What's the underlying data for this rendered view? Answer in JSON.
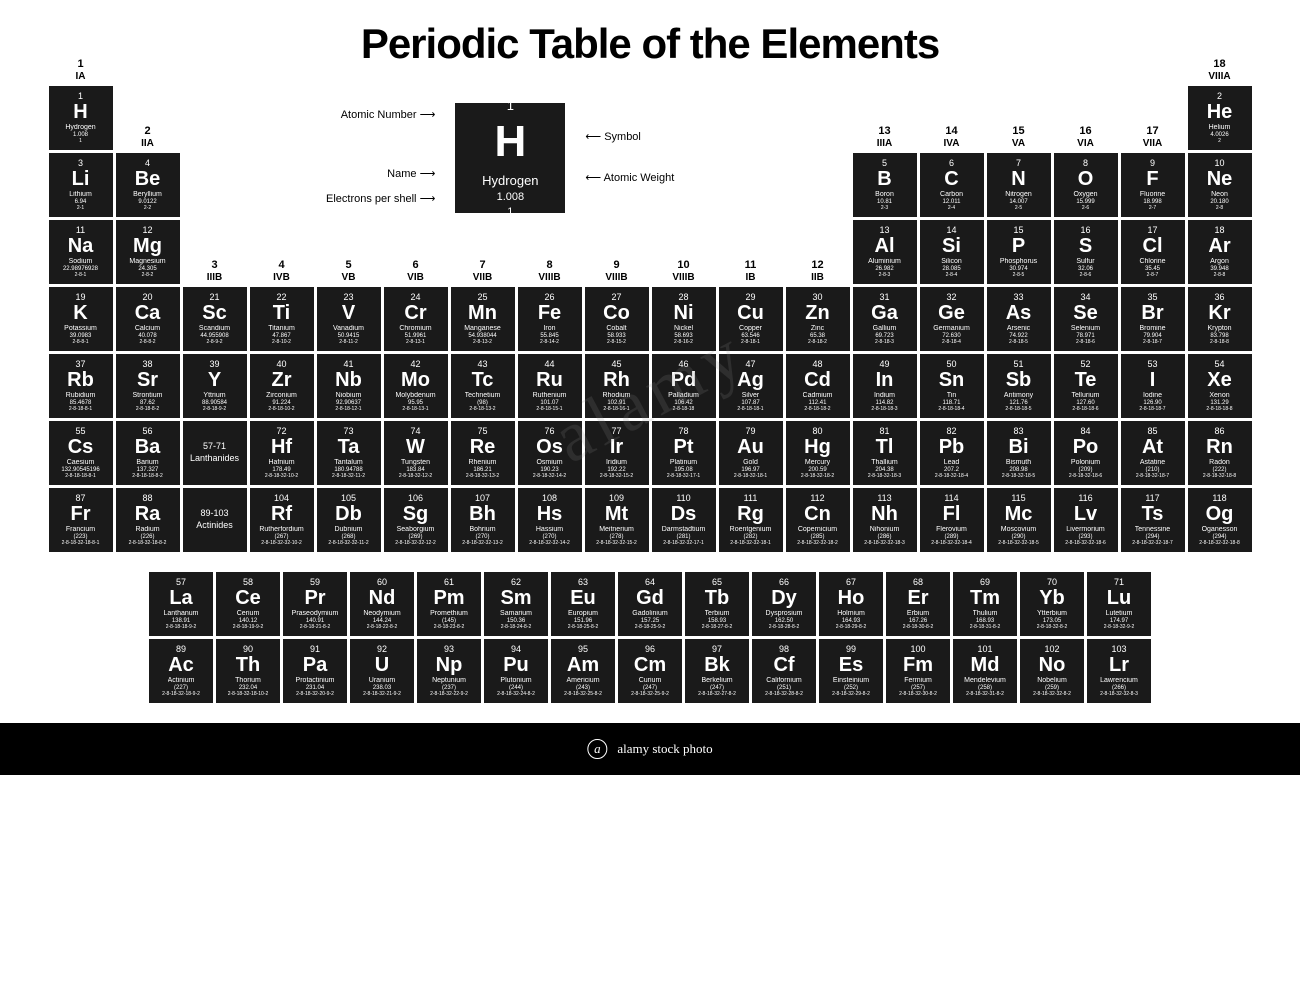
{
  "title": "Periodic Table of the Elements",
  "watermark_main": "alamy",
  "watermark_sub": "alamy stock photo",
  "image_id": "www.alamy.com - RD10B9",
  "colors": {
    "cell_bg": "#1a1a1a",
    "cell_fg": "#ffffff",
    "page_bg": "#ffffff",
    "bottom_bar": "#000000"
  },
  "legend": {
    "atomic_number": "Atomic Number",
    "symbol": "Symbol",
    "name": "Name",
    "atomic_weight": "Atomic Weight",
    "electrons": "Electrons per shell",
    "sample": {
      "z": "1",
      "sym": "H",
      "nm": "Hydrogen",
      "wt": "1.008",
      "sh": "1"
    }
  },
  "groups": [
    {
      "n": "1",
      "o": "IA",
      "c": 1,
      "r": 1
    },
    {
      "n": "2",
      "o": "IIA",
      "c": 2,
      "r": 2
    },
    {
      "n": "3",
      "o": "IIIB",
      "c": 3,
      "r": 4
    },
    {
      "n": "4",
      "o": "IVB",
      "c": 4,
      "r": 4
    },
    {
      "n": "5",
      "o": "VB",
      "c": 5,
      "r": 4
    },
    {
      "n": "6",
      "o": "VIB",
      "c": 6,
      "r": 4
    },
    {
      "n": "7",
      "o": "VIIB",
      "c": 7,
      "r": 4
    },
    {
      "n": "8",
      "o": "VIIIB",
      "c": 8,
      "r": 4
    },
    {
      "n": "9",
      "o": "VIIIB",
      "c": 9,
      "r": 4
    },
    {
      "n": "10",
      "o": "VIIIB",
      "c": 10,
      "r": 4
    },
    {
      "n": "11",
      "o": "IB",
      "c": 11,
      "r": 4
    },
    {
      "n": "12",
      "o": "IIB",
      "c": 12,
      "r": 4
    },
    {
      "n": "13",
      "o": "IIIA",
      "c": 13,
      "r": 2
    },
    {
      "n": "14",
      "o": "IVA",
      "c": 14,
      "r": 2
    },
    {
      "n": "15",
      "o": "VA",
      "c": 15,
      "r": 2
    },
    {
      "n": "16",
      "o": "VIA",
      "c": 16,
      "r": 2
    },
    {
      "n": "17",
      "o": "VIIA",
      "c": 17,
      "r": 2
    },
    {
      "n": "18",
      "o": "VIIIA",
      "c": 18,
      "r": 1
    }
  ],
  "placeholders": [
    {
      "r": 6,
      "c": 3,
      "t1": "57-71",
      "t2": "Lanthanides"
    },
    {
      "r": 7,
      "c": 3,
      "t1": "89-103",
      "t2": "Actinides"
    }
  ],
  "elements": [
    {
      "z": 1,
      "sym": "H",
      "nm": "Hydrogen",
      "wt": "1.008",
      "sh": "1",
      "r": 1,
      "c": 1
    },
    {
      "z": 2,
      "sym": "He",
      "nm": "Helium",
      "wt": "4.0026",
      "sh": "2",
      "r": 1,
      "c": 18
    },
    {
      "z": 3,
      "sym": "Li",
      "nm": "Lithium",
      "wt": "6.94",
      "sh": "2-1",
      "r": 2,
      "c": 1
    },
    {
      "z": 4,
      "sym": "Be",
      "nm": "Beryllium",
      "wt": "9.0122",
      "sh": "2-2",
      "r": 2,
      "c": 2
    },
    {
      "z": 5,
      "sym": "B",
      "nm": "Boron",
      "wt": "10.81",
      "sh": "2-3",
      "r": 2,
      "c": 13
    },
    {
      "z": 6,
      "sym": "C",
      "nm": "Carbon",
      "wt": "12.011",
      "sh": "2-4",
      "r": 2,
      "c": 14
    },
    {
      "z": 7,
      "sym": "N",
      "nm": "Nitrogen",
      "wt": "14.007",
      "sh": "2-5",
      "r": 2,
      "c": 15
    },
    {
      "z": 8,
      "sym": "O",
      "nm": "Oxygen",
      "wt": "15.999",
      "sh": "2-6",
      "r": 2,
      "c": 16
    },
    {
      "z": 9,
      "sym": "F",
      "nm": "Fluorine",
      "wt": "18.998",
      "sh": "2-7",
      "r": 2,
      "c": 17
    },
    {
      "z": 10,
      "sym": "Ne",
      "nm": "Neon",
      "wt": "20.180",
      "sh": "2-8",
      "r": 2,
      "c": 18
    },
    {
      "z": 11,
      "sym": "Na",
      "nm": "Sodium",
      "wt": "22.98976928",
      "sh": "2-8-1",
      "r": 3,
      "c": 1
    },
    {
      "z": 12,
      "sym": "Mg",
      "nm": "Magnesium",
      "wt": "24.305",
      "sh": "2-8-2",
      "r": 3,
      "c": 2
    },
    {
      "z": 13,
      "sym": "Al",
      "nm": "Aluminium",
      "wt": "26.982",
      "sh": "2-8-3",
      "r": 3,
      "c": 13
    },
    {
      "z": 14,
      "sym": "Si",
      "nm": "Silicon",
      "wt": "28.085",
      "sh": "2-8-4",
      "r": 3,
      "c": 14
    },
    {
      "z": 15,
      "sym": "P",
      "nm": "Phosphorus",
      "wt": "30.974",
      "sh": "2-8-5",
      "r": 3,
      "c": 15
    },
    {
      "z": 16,
      "sym": "S",
      "nm": "Sulfur",
      "wt": "32.06",
      "sh": "2-8-6",
      "r": 3,
      "c": 16
    },
    {
      "z": 17,
      "sym": "Cl",
      "nm": "Chlorine",
      "wt": "35.45",
      "sh": "2-8-7",
      "r": 3,
      "c": 17
    },
    {
      "z": 18,
      "sym": "Ar",
      "nm": "Argon",
      "wt": "39.948",
      "sh": "2-8-8",
      "r": 3,
      "c": 18
    },
    {
      "z": 19,
      "sym": "K",
      "nm": "Potassium",
      "wt": "39.0983",
      "sh": "2-8-8-1",
      "r": 4,
      "c": 1
    },
    {
      "z": 20,
      "sym": "Ca",
      "nm": "Calcium",
      "wt": "40.078",
      "sh": "2-8-8-2",
      "r": 4,
      "c": 2
    },
    {
      "z": 21,
      "sym": "Sc",
      "nm": "Scandium",
      "wt": "44.955908",
      "sh": "2-8-9-2",
      "r": 4,
      "c": 3
    },
    {
      "z": 22,
      "sym": "Ti",
      "nm": "Titanium",
      "wt": "47.867",
      "sh": "2-8-10-2",
      "r": 4,
      "c": 4
    },
    {
      "z": 23,
      "sym": "V",
      "nm": "Vanadium",
      "wt": "50.9415",
      "sh": "2-8-11-2",
      "r": 4,
      "c": 5
    },
    {
      "z": 24,
      "sym": "Cr",
      "nm": "Chromium",
      "wt": "51.9961",
      "sh": "2-8-13-1",
      "r": 4,
      "c": 6
    },
    {
      "z": 25,
      "sym": "Mn",
      "nm": "Manganese",
      "wt": "54.938044",
      "sh": "2-8-13-2",
      "r": 4,
      "c": 7
    },
    {
      "z": 26,
      "sym": "Fe",
      "nm": "Iron",
      "wt": "55.845",
      "sh": "2-8-14-2",
      "r": 4,
      "c": 8
    },
    {
      "z": 27,
      "sym": "Co",
      "nm": "Cobalt",
      "wt": "58.933",
      "sh": "2-8-15-2",
      "r": 4,
      "c": 9
    },
    {
      "z": 28,
      "sym": "Ni",
      "nm": "Nickel",
      "wt": "58.693",
      "sh": "2-8-16-2",
      "r": 4,
      "c": 10
    },
    {
      "z": 29,
      "sym": "Cu",
      "nm": "Copper",
      "wt": "63.546",
      "sh": "2-8-18-1",
      "r": 4,
      "c": 11
    },
    {
      "z": 30,
      "sym": "Zn",
      "nm": "Zinc",
      "wt": "65.38",
      "sh": "2-8-18-2",
      "r": 4,
      "c": 12
    },
    {
      "z": 31,
      "sym": "Ga",
      "nm": "Gallium",
      "wt": "69.723",
      "sh": "2-8-18-3",
      "r": 4,
      "c": 13
    },
    {
      "z": 32,
      "sym": "Ge",
      "nm": "Germanium",
      "wt": "72.630",
      "sh": "2-8-18-4",
      "r": 4,
      "c": 14
    },
    {
      "z": 33,
      "sym": "As",
      "nm": "Arsenic",
      "wt": "74.922",
      "sh": "2-8-18-5",
      "r": 4,
      "c": 15
    },
    {
      "z": 34,
      "sym": "Se",
      "nm": "Selenium",
      "wt": "78.971",
      "sh": "2-8-18-6",
      "r": 4,
      "c": 16
    },
    {
      "z": 35,
      "sym": "Br",
      "nm": "Bromine",
      "wt": "79.904",
      "sh": "2-8-18-7",
      "r": 4,
      "c": 17
    },
    {
      "z": 36,
      "sym": "Kr",
      "nm": "Krypton",
      "wt": "83.798",
      "sh": "2-8-18-8",
      "r": 4,
      "c": 18
    },
    {
      "z": 37,
      "sym": "Rb",
      "nm": "Rubidium",
      "wt": "85.4678",
      "sh": "2-8-18-8-1",
      "r": 5,
      "c": 1
    },
    {
      "z": 38,
      "sym": "Sr",
      "nm": "Strontium",
      "wt": "87.62",
      "sh": "2-8-18-8-2",
      "r": 5,
      "c": 2
    },
    {
      "z": 39,
      "sym": "Y",
      "nm": "Yttrium",
      "wt": "88.90584",
      "sh": "2-8-18-9-2",
      "r": 5,
      "c": 3
    },
    {
      "z": 40,
      "sym": "Zr",
      "nm": "Zirconium",
      "wt": "91.224",
      "sh": "2-8-18-10-2",
      "r": 5,
      "c": 4
    },
    {
      "z": 41,
      "sym": "Nb",
      "nm": "Niobium",
      "wt": "92.90637",
      "sh": "2-8-18-12-1",
      "r": 5,
      "c": 5
    },
    {
      "z": 42,
      "sym": "Mo",
      "nm": "Molybdenum",
      "wt": "95.95",
      "sh": "2-8-18-13-1",
      "r": 5,
      "c": 6
    },
    {
      "z": 43,
      "sym": "Tc",
      "nm": "Technetium",
      "wt": "(98)",
      "sh": "2-8-18-13-2",
      "r": 5,
      "c": 7
    },
    {
      "z": 44,
      "sym": "Ru",
      "nm": "Ruthenium",
      "wt": "101.07",
      "sh": "2-8-18-15-1",
      "r": 5,
      "c": 8
    },
    {
      "z": 45,
      "sym": "Rh",
      "nm": "Rhodium",
      "wt": "102.91",
      "sh": "2-8-18-16-1",
      "r": 5,
      "c": 9
    },
    {
      "z": 46,
      "sym": "Pd",
      "nm": "Palladium",
      "wt": "106.42",
      "sh": "2-8-18-18",
      "r": 5,
      "c": 10
    },
    {
      "z": 47,
      "sym": "Ag",
      "nm": "Silver",
      "wt": "107.87",
      "sh": "2-8-18-18-1",
      "r": 5,
      "c": 11
    },
    {
      "z": 48,
      "sym": "Cd",
      "nm": "Cadmium",
      "wt": "112.41",
      "sh": "2-8-18-18-2",
      "r": 5,
      "c": 12
    },
    {
      "z": 49,
      "sym": "In",
      "nm": "Indium",
      "wt": "114.82",
      "sh": "2-8-18-18-3",
      "r": 5,
      "c": 13
    },
    {
      "z": 50,
      "sym": "Sn",
      "nm": "Tin",
      "wt": "118.71",
      "sh": "2-8-18-18-4",
      "r": 5,
      "c": 14
    },
    {
      "z": 51,
      "sym": "Sb",
      "nm": "Antimony",
      "wt": "121.76",
      "sh": "2-8-18-18-5",
      "r": 5,
      "c": 15
    },
    {
      "z": 52,
      "sym": "Te",
      "nm": "Tellurium",
      "wt": "127.60",
      "sh": "2-8-18-18-6",
      "r": 5,
      "c": 16
    },
    {
      "z": 53,
      "sym": "I",
      "nm": "Iodine",
      "wt": "126.90",
      "sh": "2-8-18-18-7",
      "r": 5,
      "c": 17
    },
    {
      "z": 54,
      "sym": "Xe",
      "nm": "Xenon",
      "wt": "131.29",
      "sh": "2-8-18-18-8",
      "r": 5,
      "c": 18
    },
    {
      "z": 55,
      "sym": "Cs",
      "nm": "Caesium",
      "wt": "132.90545196",
      "sh": "2-8-18-18-8-1",
      "r": 6,
      "c": 1
    },
    {
      "z": 56,
      "sym": "Ba",
      "nm": "Barium",
      "wt": "137.327",
      "sh": "2-8-18-18-8-2",
      "r": 6,
      "c": 2
    },
    {
      "z": 72,
      "sym": "Hf",
      "nm": "Hafnium",
      "wt": "178.49",
      "sh": "2-8-18-32-10-2",
      "r": 6,
      "c": 4
    },
    {
      "z": 73,
      "sym": "Ta",
      "nm": "Tantalum",
      "wt": "180.94788",
      "sh": "2-8-18-32-11-2",
      "r": 6,
      "c": 5
    },
    {
      "z": 74,
      "sym": "W",
      "nm": "Tungsten",
      "wt": "183.84",
      "sh": "2-8-18-32-12-2",
      "r": 6,
      "c": 6
    },
    {
      "z": 75,
      "sym": "Re",
      "nm": "Rhenium",
      "wt": "186.21",
      "sh": "2-8-18-32-13-2",
      "r": 6,
      "c": 7
    },
    {
      "z": 76,
      "sym": "Os",
      "nm": "Osmium",
      "wt": "190.23",
      "sh": "2-8-18-32-14-2",
      "r": 6,
      "c": 8
    },
    {
      "z": 77,
      "sym": "Ir",
      "nm": "Iridium",
      "wt": "192.22",
      "sh": "2-8-18-32-15-2",
      "r": 6,
      "c": 9
    },
    {
      "z": 78,
      "sym": "Pt",
      "nm": "Platinum",
      "wt": "195.08",
      "sh": "2-8-18-32-17-1",
      "r": 6,
      "c": 10
    },
    {
      "z": 79,
      "sym": "Au",
      "nm": "Gold",
      "wt": "196.97",
      "sh": "2-8-18-32-18-1",
      "r": 6,
      "c": 11
    },
    {
      "z": 80,
      "sym": "Hg",
      "nm": "Mercury",
      "wt": "200.59",
      "sh": "2-8-18-32-18-2",
      "r": 6,
      "c": 12
    },
    {
      "z": 81,
      "sym": "Tl",
      "nm": "Thallium",
      "wt": "204.38",
      "sh": "2-8-18-32-18-3",
      "r": 6,
      "c": 13
    },
    {
      "z": 82,
      "sym": "Pb",
      "nm": "Lead",
      "wt": "207.2",
      "sh": "2-8-18-32-18-4",
      "r": 6,
      "c": 14
    },
    {
      "z": 83,
      "sym": "Bi",
      "nm": "Bismuth",
      "wt": "208.98",
      "sh": "2-8-18-32-18-5",
      "r": 6,
      "c": 15
    },
    {
      "z": 84,
      "sym": "Po",
      "nm": "Polonium",
      "wt": "(209)",
      "sh": "2-8-18-32-18-6",
      "r": 6,
      "c": 16
    },
    {
      "z": 85,
      "sym": "At",
      "nm": "Astatine",
      "wt": "(210)",
      "sh": "2-8-18-32-18-7",
      "r": 6,
      "c": 17
    },
    {
      "z": 86,
      "sym": "Rn",
      "nm": "Radon",
      "wt": "(222)",
      "sh": "2-8-18-32-18-8",
      "r": 6,
      "c": 18
    },
    {
      "z": 87,
      "sym": "Fr",
      "nm": "Francium",
      "wt": "(223)",
      "sh": "2-8-18-32-18-8-1",
      "r": 7,
      "c": 1
    },
    {
      "z": 88,
      "sym": "Ra",
      "nm": "Radium",
      "wt": "(226)",
      "sh": "2-8-18-32-18-8-2",
      "r": 7,
      "c": 2
    },
    {
      "z": 104,
      "sym": "Rf",
      "nm": "Rutherfordium",
      "wt": "(267)",
      "sh": "2-8-18-32-32-10-2",
      "r": 7,
      "c": 4
    },
    {
      "z": 105,
      "sym": "Db",
      "nm": "Dubnium",
      "wt": "(268)",
      "sh": "2-8-18-32-32-11-2",
      "r": 7,
      "c": 5
    },
    {
      "z": 106,
      "sym": "Sg",
      "nm": "Seaborgium",
      "wt": "(269)",
      "sh": "2-8-18-32-32-12-2",
      "r": 7,
      "c": 6
    },
    {
      "z": 107,
      "sym": "Bh",
      "nm": "Bohrium",
      "wt": "(270)",
      "sh": "2-8-18-32-32-13-2",
      "r": 7,
      "c": 7
    },
    {
      "z": 108,
      "sym": "Hs",
      "nm": "Hassium",
      "wt": "(270)",
      "sh": "2-8-18-32-32-14-2",
      "r": 7,
      "c": 8
    },
    {
      "z": 109,
      "sym": "Mt",
      "nm": "Meitnerium",
      "wt": "(278)",
      "sh": "2-8-18-32-32-15-2",
      "r": 7,
      "c": 9
    },
    {
      "z": 110,
      "sym": "Ds",
      "nm": "Darmstadtium",
      "wt": "(281)",
      "sh": "2-8-18-32-32-17-1",
      "r": 7,
      "c": 10
    },
    {
      "z": 111,
      "sym": "Rg",
      "nm": "Roentgenium",
      "wt": "(282)",
      "sh": "2-8-18-32-32-18-1",
      "r": 7,
      "c": 11
    },
    {
      "z": 112,
      "sym": "Cn",
      "nm": "Copernicium",
      "wt": "(285)",
      "sh": "2-8-18-32-32-18-2",
      "r": 7,
      "c": 12
    },
    {
      "z": 113,
      "sym": "Nh",
      "nm": "Nihonium",
      "wt": "(286)",
      "sh": "2-8-18-32-32-18-3",
      "r": 7,
      "c": 13
    },
    {
      "z": 114,
      "sym": "Fl",
      "nm": "Flerovium",
      "wt": "(289)",
      "sh": "2-8-18-32-32-18-4",
      "r": 7,
      "c": 14
    },
    {
      "z": 115,
      "sym": "Mc",
      "nm": "Moscovium",
      "wt": "(290)",
      "sh": "2-8-18-32-32-18-5",
      "r": 7,
      "c": 15
    },
    {
      "z": 116,
      "sym": "Lv",
      "nm": "Livermorium",
      "wt": "(293)",
      "sh": "2-8-18-32-32-18-6",
      "r": 7,
      "c": 16
    },
    {
      "z": 117,
      "sym": "Ts",
      "nm": "Tennessine",
      "wt": "(294)",
      "sh": "2-8-18-32-32-18-7",
      "r": 7,
      "c": 17
    },
    {
      "z": 118,
      "sym": "Og",
      "nm": "Oganesson",
      "wt": "(294)",
      "sh": "2-8-18-32-32-18-8",
      "r": 7,
      "c": 18
    }
  ],
  "fblock": [
    {
      "z": 57,
      "sym": "La",
      "nm": "Lanthanum",
      "wt": "138.91",
      "sh": "2-8-18-18-9-2"
    },
    {
      "z": 58,
      "sym": "Ce",
      "nm": "Cerium",
      "wt": "140.12",
      "sh": "2-8-18-19-9-2"
    },
    {
      "z": 59,
      "sym": "Pr",
      "nm": "Praseodymium",
      "wt": "140.91",
      "sh": "2-8-18-21-8-2"
    },
    {
      "z": 60,
      "sym": "Nd",
      "nm": "Neodymium",
      "wt": "144.24",
      "sh": "2-8-18-22-8-2"
    },
    {
      "z": 61,
      "sym": "Pm",
      "nm": "Promethium",
      "wt": "(145)",
      "sh": "2-8-18-23-8-2"
    },
    {
      "z": 62,
      "sym": "Sm",
      "nm": "Samarium",
      "wt": "150.36",
      "sh": "2-8-18-24-8-2"
    },
    {
      "z": 63,
      "sym": "Eu",
      "nm": "Europium",
      "wt": "151.96",
      "sh": "2-8-18-25-8-2"
    },
    {
      "z": 64,
      "sym": "Gd",
      "nm": "Gadolinium",
      "wt": "157.25",
      "sh": "2-8-18-25-9-2"
    },
    {
      "z": 65,
      "sym": "Tb",
      "nm": "Terbium",
      "wt": "158.93",
      "sh": "2-8-18-27-8-2"
    },
    {
      "z": 66,
      "sym": "Dy",
      "nm": "Dysprosium",
      "wt": "162.50",
      "sh": "2-8-18-28-8-2"
    },
    {
      "z": 67,
      "sym": "Ho",
      "nm": "Holmium",
      "wt": "164.93",
      "sh": "2-8-18-29-8-2"
    },
    {
      "z": 68,
      "sym": "Er",
      "nm": "Erbium",
      "wt": "167.26",
      "sh": "2-8-18-30-8-2"
    },
    {
      "z": 69,
      "sym": "Tm",
      "nm": "Thulium",
      "wt": "168.93",
      "sh": "2-8-18-31-8-2"
    },
    {
      "z": 70,
      "sym": "Yb",
      "nm": "Ytterbium",
      "wt": "173.05",
      "sh": "2-8-18-32-8-2"
    },
    {
      "z": 71,
      "sym": "Lu",
      "nm": "Lutetium",
      "wt": "174.97",
      "sh": "2-8-18-32-9-2"
    },
    {
      "z": 89,
      "sym": "Ac",
      "nm": "Actinium",
      "wt": "(227)",
      "sh": "2-8-18-32-18-9-2"
    },
    {
      "z": 90,
      "sym": "Th",
      "nm": "Thorium",
      "wt": "232.04",
      "sh": "2-8-18-32-18-10-2"
    },
    {
      "z": 91,
      "sym": "Pa",
      "nm": "Protactinium",
      "wt": "231.04",
      "sh": "2-8-18-32-20-9-2"
    },
    {
      "z": 92,
      "sym": "U",
      "nm": "Uranium",
      "wt": "238.03",
      "sh": "2-8-18-32-21-9-2"
    },
    {
      "z": 93,
      "sym": "Np",
      "nm": "Neptunium",
      "wt": "(237)",
      "sh": "2-8-18-32-22-9-2"
    },
    {
      "z": 94,
      "sym": "Pu",
      "nm": "Plutonium",
      "wt": "(244)",
      "sh": "2-8-18-32-24-8-2"
    },
    {
      "z": 95,
      "sym": "Am",
      "nm": "Americium",
      "wt": "(243)",
      "sh": "2-8-18-32-25-8-2"
    },
    {
      "z": 96,
      "sym": "Cm",
      "nm": "Curium",
      "wt": "(247)",
      "sh": "2-8-18-32-25-9-2"
    },
    {
      "z": 97,
      "sym": "Bk",
      "nm": "Berkelium",
      "wt": "(247)",
      "sh": "2-8-18-32-27-8-2"
    },
    {
      "z": 98,
      "sym": "Cf",
      "nm": "Californium",
      "wt": "(251)",
      "sh": "2-8-18-32-28-8-2"
    },
    {
      "z": 99,
      "sym": "Es",
      "nm": "Einsteinium",
      "wt": "(252)",
      "sh": "2-8-18-32-29-8-2"
    },
    {
      "z": 100,
      "sym": "Fm",
      "nm": "Fermium",
      "wt": "(257)",
      "sh": "2-8-18-32-30-8-2"
    },
    {
      "z": 101,
      "sym": "Md",
      "nm": "Mendelevium",
      "wt": "(258)",
      "sh": "2-8-18-32-31-8-2"
    },
    {
      "z": 102,
      "sym": "No",
      "nm": "Nobelium",
      "wt": "(259)",
      "sh": "2-8-18-32-32-8-2"
    },
    {
      "z": 103,
      "sym": "Lr",
      "nm": "Lawrencium",
      "wt": "(266)",
      "sh": "2-8-18-32-32-8-3"
    }
  ]
}
